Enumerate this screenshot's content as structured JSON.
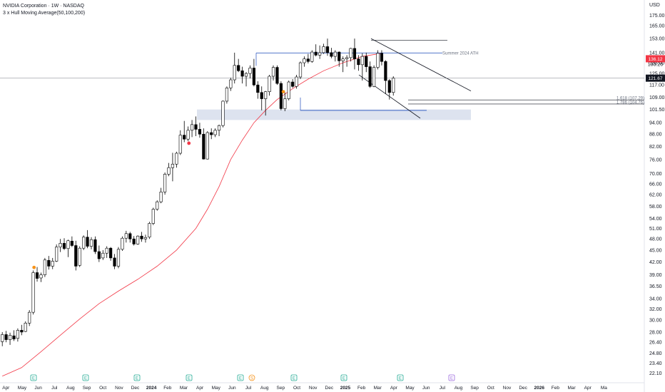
{
  "header": {
    "title": "NVIDIA Corporation · 1W · NASDAQ",
    "indicator": "3 x Hull Moving Average(50,100,200)",
    "currency": "USD"
  },
  "chart_data": {
    "type": "candlestick",
    "title": "NVIDIA Corporation · 1W · NASDAQ",
    "y_scale": "log",
    "ylim": [
      21.5,
      182
    ],
    "y_ticks": [
      "175.00",
      "165.00",
      "153.00",
      "141.00",
      "133.00",
      "125.00",
      "117.00",
      "109.00",
      "101.50",
      "94.00",
      "88.00",
      "82.00",
      "76.00",
      "70.00",
      "66.00",
      "62.00",
      "58.00",
      "54.00",
      "51.00",
      "48.00",
      "45.00",
      "42.00",
      "39.00",
      "36.50",
      "34.00",
      "32.00",
      "30.00",
      "28.00",
      "26.40",
      "24.80",
      "23.40",
      "22.10"
    ],
    "x_ticks": [
      {
        "label": "Apr",
        "date": "2023-04"
      },
      {
        "label": "May",
        "date": "2023-05"
      },
      {
        "label": "Jun",
        "date": "2023-06"
      },
      {
        "label": "Jul",
        "date": "2023-07"
      },
      {
        "label": "Aug",
        "date": "2023-08"
      },
      {
        "label": "Sep",
        "date": "2023-09"
      },
      {
        "label": "Oct",
        "date": "2023-10"
      },
      {
        "label": "Nov",
        "date": "2023-11"
      },
      {
        "label": "Dec",
        "date": "2023-12"
      },
      {
        "label": "2024",
        "date": "2024-01",
        "bold": true
      },
      {
        "label": "Feb",
        "date": "2024-02"
      },
      {
        "label": "Mar",
        "date": "2024-03"
      },
      {
        "label": "Apr",
        "date": "2024-04"
      },
      {
        "label": "May",
        "date": "2024-05"
      },
      {
        "label": "Jun",
        "date": "2024-06"
      },
      {
        "label": "Jul",
        "date": "2024-07"
      },
      {
        "label": "Aug",
        "date": "2024-08"
      },
      {
        "label": "Sep",
        "date": "2024-09"
      },
      {
        "label": "Oct",
        "date": "2024-10"
      },
      {
        "label": "Nov",
        "date": "2024-11"
      },
      {
        "label": "Dec",
        "date": "2024-12"
      },
      {
        "label": "2025",
        "date": "2025-01",
        "bold": true
      },
      {
        "label": "Feb",
        "date": "2025-02"
      },
      {
        "label": "Mar",
        "date": "2025-03"
      },
      {
        "label": "Apr",
        "date": "2025-04"
      },
      {
        "label": "May",
        "date": "2025-05"
      },
      {
        "label": "Jun",
        "date": "2025-06"
      },
      {
        "label": "Jul",
        "date": "2025-07"
      },
      {
        "label": "Aug",
        "date": "2025-08"
      },
      {
        "label": "Sep",
        "date": "2025-09"
      },
      {
        "label": "Oct",
        "date": "2025-10"
      },
      {
        "label": "Nov",
        "date": "2025-11"
      },
      {
        "label": "Dec",
        "date": "2025-12"
      },
      {
        "label": "2026",
        "date": "2026-01",
        "bold": true
      },
      {
        "label": "Feb",
        "date": "2026-02"
      },
      {
        "label": "Mar",
        "date": "2026-03"
      },
      {
        "label": "Apr",
        "date": "2026-04"
      },
      {
        "label": "Ma",
        "date": "2026-05"
      }
    ],
    "candles": [
      {
        "o": 26.5,
        "h": 28.0,
        "l": 25.8,
        "c": 27.6
      },
      {
        "o": 27.6,
        "h": 28.2,
        "l": 26.4,
        "c": 26.8
      },
      {
        "o": 26.8,
        "h": 27.9,
        "l": 26.0,
        "c": 27.5
      },
      {
        "o": 27.4,
        "h": 28.3,
        "l": 26.6,
        "c": 26.9
      },
      {
        "o": 27.0,
        "h": 28.6,
        "l": 26.5,
        "c": 28.3
      },
      {
        "o": 28.3,
        "h": 29.2,
        "l": 27.5,
        "c": 28.0
      },
      {
        "o": 28.1,
        "h": 29.8,
        "l": 28.0,
        "c": 29.5
      },
      {
        "o": 29.5,
        "h": 31.8,
        "l": 29.0,
        "c": 31.4
      },
      {
        "o": 31.4,
        "h": 40.0,
        "l": 31.0,
        "c": 39.5
      },
      {
        "o": 39.5,
        "h": 40.8,
        "l": 37.5,
        "c": 38.2
      },
      {
        "o": 38.3,
        "h": 39.5,
        "l": 37.4,
        "c": 39.0
      },
      {
        "o": 39.0,
        "h": 43.0,
        "l": 38.5,
        "c": 42.5
      },
      {
        "o": 42.4,
        "h": 43.5,
        "l": 40.2,
        "c": 41.0
      },
      {
        "o": 41.0,
        "h": 43.0,
        "l": 40.3,
        "c": 42.2
      },
      {
        "o": 42.2,
        "h": 46.5,
        "l": 42.0,
        "c": 45.8
      },
      {
        "o": 45.8,
        "h": 48.0,
        "l": 44.5,
        "c": 46.8
      },
      {
        "o": 46.8,
        "h": 48.2,
        "l": 45.0,
        "c": 45.4
      },
      {
        "o": 45.4,
        "h": 47.8,
        "l": 43.2,
        "c": 47.5
      },
      {
        "o": 47.4,
        "h": 48.7,
        "l": 45.8,
        "c": 46.2
      },
      {
        "o": 46.2,
        "h": 47.5,
        "l": 40.0,
        "c": 41.0
      },
      {
        "o": 41.2,
        "h": 46.0,
        "l": 40.8,
        "c": 45.5
      },
      {
        "o": 45.5,
        "h": 49.0,
        "l": 45.0,
        "c": 48.5
      },
      {
        "o": 48.5,
        "h": 50.5,
        "l": 45.5,
        "c": 46.0
      },
      {
        "o": 46.0,
        "h": 48.5,
        "l": 45.2,
        "c": 47.8
      },
      {
        "o": 47.8,
        "h": 48.7,
        "l": 44.0,
        "c": 44.6
      },
      {
        "o": 44.6,
        "h": 46.2,
        "l": 42.0,
        "c": 42.8
      },
      {
        "o": 43.0,
        "h": 45.0,
        "l": 42.5,
        "c": 44.2
      },
      {
        "o": 44.2,
        "h": 46.0,
        "l": 43.0,
        "c": 45.5
      },
      {
        "o": 45.5,
        "h": 45.8,
        "l": 42.3,
        "c": 43.0
      },
      {
        "o": 43.0,
        "h": 44.0,
        "l": 40.3,
        "c": 41.0
      },
      {
        "o": 41.0,
        "h": 45.8,
        "l": 40.5,
        "c": 45.2
      },
      {
        "o": 45.2,
        "h": 48.7,
        "l": 44.8,
        "c": 48.2
      },
      {
        "o": 48.2,
        "h": 50.3,
        "l": 47.0,
        "c": 49.5
      },
      {
        "o": 49.5,
        "h": 50.0,
        "l": 47.0,
        "c": 48.0
      },
      {
        "o": 48.0,
        "h": 48.8,
        "l": 46.2,
        "c": 46.6
      },
      {
        "o": 46.6,
        "h": 49.0,
        "l": 46.4,
        "c": 48.8
      },
      {
        "o": 48.8,
        "h": 50.0,
        "l": 47.2,
        "c": 48.0
      },
      {
        "o": 48.0,
        "h": 49.2,
        "l": 47.0,
        "c": 48.4
      },
      {
        "o": 48.5,
        "h": 53.0,
        "l": 48.0,
        "c": 52.5
      },
      {
        "o": 52.5,
        "h": 57.5,
        "l": 52.0,
        "c": 57.0
      },
      {
        "o": 57.0,
        "h": 60.0,
        "l": 56.5,
        "c": 59.5
      },
      {
        "o": 59.5,
        "h": 64.5,
        "l": 59.0,
        "c": 63.0
      },
      {
        "o": 63.0,
        "h": 70.5,
        "l": 62.0,
        "c": 69.8
      },
      {
        "o": 69.8,
        "h": 74.5,
        "l": 69.0,
        "c": 72.5
      },
      {
        "o": 72.5,
        "h": 79.0,
        "l": 67.0,
        "c": 74.0
      },
      {
        "o": 74.0,
        "h": 79.5,
        "l": 72.5,
        "c": 78.8
      },
      {
        "o": 78.8,
        "h": 90.0,
        "l": 78.0,
        "c": 87.5
      },
      {
        "o": 87.5,
        "h": 95.0,
        "l": 84.0,
        "c": 85.5
      },
      {
        "o": 85.5,
        "h": 92.0,
        "l": 84.5,
        "c": 90.0
      },
      {
        "o": 90.0,
        "h": 95.5,
        "l": 86.5,
        "c": 93.0
      },
      {
        "o": 93.0,
        "h": 97.5,
        "l": 87.0,
        "c": 90.5
      },
      {
        "o": 90.5,
        "h": 94.0,
        "l": 86.2,
        "c": 88.0
      },
      {
        "o": 88.0,
        "h": 91.0,
        "l": 76.0,
        "c": 76.2
      },
      {
        "o": 76.2,
        "h": 89.5,
        "l": 76.0,
        "c": 88.8
      },
      {
        "o": 88.8,
        "h": 91.0,
        "l": 85.5,
        "c": 87.7
      },
      {
        "o": 87.7,
        "h": 91.0,
        "l": 86.5,
        "c": 90.0
      },
      {
        "o": 90.0,
        "h": 93.0,
        "l": 87.0,
        "c": 92.5
      },
      {
        "o": 92.5,
        "h": 107.0,
        "l": 91.5,
        "c": 106.5
      },
      {
        "o": 106.5,
        "h": 116.0,
        "l": 105.0,
        "c": 115.0
      },
      {
        "o": 115.0,
        "h": 122.0,
        "l": 113.0,
        "c": 120.5
      },
      {
        "o": 120.5,
        "h": 141.0,
        "l": 118.0,
        "c": 131.0
      },
      {
        "o": 131.0,
        "h": 136.0,
        "l": 126.0,
        "c": 127.0
      },
      {
        "o": 127.0,
        "h": 130.0,
        "l": 118.0,
        "c": 123.0
      },
      {
        "o": 123.0,
        "h": 126.0,
        "l": 116.0,
        "c": 125.0
      },
      {
        "o": 125.0,
        "h": 131.0,
        "l": 121.5,
        "c": 129.0
      },
      {
        "o": 129.0,
        "h": 136.0,
        "l": 116.0,
        "c": 117.0
      },
      {
        "o": 117.0,
        "h": 119.5,
        "l": 108.0,
        "c": 112.0
      },
      {
        "o": 112.0,
        "h": 116.0,
        "l": 101.0,
        "c": 108.0
      },
      {
        "o": 108.0,
        "h": 113.0,
        "l": 98.0,
        "c": 112.5
      },
      {
        "o": 112.5,
        "h": 124.0,
        "l": 110.0,
        "c": 123.0
      },
      {
        "o": 123.0,
        "h": 131.0,
        "l": 120.0,
        "c": 129.5
      },
      {
        "o": 129.5,
        "h": 131.0,
        "l": 117.0,
        "c": 118.0
      },
      {
        "o": 118.0,
        "h": 119.5,
        "l": 101.0,
        "c": 102.0
      },
      {
        "o": 102.0,
        "h": 112.0,
        "l": 100.5,
        "c": 108.0
      },
      {
        "o": 108.0,
        "h": 120.0,
        "l": 107.0,
        "c": 119.0
      },
      {
        "o": 119.0,
        "h": 121.0,
        "l": 115.0,
        "c": 116.0
      },
      {
        "o": 116.0,
        "h": 124.0,
        "l": 114.5,
        "c": 122.5
      },
      {
        "o": 122.5,
        "h": 134.0,
        "l": 121.0,
        "c": 133.0
      },
      {
        "o": 133.0,
        "h": 138.0,
        "l": 130.0,
        "c": 136.0
      },
      {
        "o": 136.0,
        "h": 140.0,
        "l": 132.5,
        "c": 134.0
      },
      {
        "o": 134.0,
        "h": 143.0,
        "l": 133.0,
        "c": 141.5
      },
      {
        "o": 141.5,
        "h": 148.0,
        "l": 138.0,
        "c": 139.0
      },
      {
        "o": 139.0,
        "h": 147.0,
        "l": 136.0,
        "c": 141.0
      },
      {
        "o": 141.0,
        "h": 148.5,
        "l": 140.0,
        "c": 146.0
      },
      {
        "o": 146.0,
        "h": 153.0,
        "l": 138.5,
        "c": 141.0
      },
      {
        "o": 141.0,
        "h": 145.0,
        "l": 136.5,
        "c": 138.0
      },
      {
        "o": 138.0,
        "h": 143.0,
        "l": 134.0,
        "c": 141.5
      },
      {
        "o": 141.5,
        "h": 142.0,
        "l": 130.0,
        "c": 134.5
      },
      {
        "o": 134.5,
        "h": 138.0,
        "l": 126.0,
        "c": 136.0
      },
      {
        "o": 136.0,
        "h": 139.0,
        "l": 130.0,
        "c": 137.0
      },
      {
        "o": 137.0,
        "h": 145.0,
        "l": 134.0,
        "c": 144.5
      },
      {
        "o": 144.5,
        "h": 153.0,
        "l": 128.0,
        "c": 136.0
      },
      {
        "o": 136.0,
        "h": 139.0,
        "l": 127.0,
        "c": 131.5
      },
      {
        "o": 131.5,
        "h": 140.5,
        "l": 120.0,
        "c": 138.0
      },
      {
        "o": 138.0,
        "h": 141.0,
        "l": 126.0,
        "c": 130.0
      },
      {
        "o": 130.0,
        "h": 134.0,
        "l": 115.0,
        "c": 116.0
      },
      {
        "o": 116.0,
        "h": 131.0,
        "l": 115.5,
        "c": 129.5
      },
      {
        "o": 129.5,
        "h": 143.0,
        "l": 128.0,
        "c": 140.5
      },
      {
        "o": 140.5,
        "h": 143.0,
        "l": 131.0,
        "c": 134.0
      },
      {
        "o": 134.0,
        "h": 135.0,
        "l": 111.0,
        "c": 120.0
      },
      {
        "o": 120.0,
        "h": 121.0,
        "l": 107.5,
        "c": 112.0
      },
      {
        "o": 112.0,
        "h": 123.0,
        "l": 110.0,
        "c": 121.67
      }
    ],
    "hull_ma": [
      [
        0,
        21.7
      ],
      [
        5,
        22.8
      ],
      [
        10,
        25.0
      ],
      [
        15,
        27.5
      ],
      [
        20,
        30.2
      ],
      [
        25,
        33.0
      ],
      [
        30,
        35.5
      ],
      [
        35,
        38.0
      ],
      [
        40,
        41.0
      ],
      [
        45,
        45.0
      ],
      [
        50,
        51.0
      ],
      [
        53,
        57.0
      ],
      [
        56,
        65.0
      ],
      [
        59,
        76.0
      ],
      [
        62,
        85.0
      ],
      [
        65,
        94.0
      ],
      [
        68,
        101.0
      ],
      [
        71,
        107.5
      ],
      [
        75,
        114.5
      ],
      [
        79,
        121.0
      ],
      [
        83,
        127.0
      ],
      [
        88,
        133.0
      ],
      [
        93,
        138.0
      ],
      [
        98,
        140.5
      ]
    ],
    "current_price": "121.67",
    "price_tag": "136.12",
    "price_tag_small": "133.26",
    "horizontal_levels": [
      {
        "name": "summer-2024-ath",
        "price": 140.76,
        "label": "Summer 2024 ATH"
      },
      {
        "name": "fib-1618",
        "price": 107.29,
        "label": "1.618 (107.29)"
      },
      {
        "name": "fib-1786",
        "price": 104.76,
        "label": "1.786 (104.76)"
      },
      {
        "name": "blue-support",
        "price": 101.0,
        "label": ""
      }
    ],
    "support_zone": [
      95.5,
      101.5
    ],
    "colors": {
      "up": "#ffffff",
      "down": "#000000",
      "hull": "#f23645",
      "level": "#3b63c4",
      "zone": "#d1d9ea",
      "price_tag": "#f23645",
      "current_tag": "#131722",
      "marker_red": "#f23645",
      "marker_orange": "#f7931a",
      "earnings": "#22ab94",
      "dividend": "#f7931a",
      "event_purple": "#9c6ade"
    }
  },
  "event_markers": [
    {
      "type": "earnings",
      "label": "E"
    },
    {
      "type": "earnings",
      "label": "E"
    },
    {
      "type": "earnings",
      "label": "E"
    },
    {
      "type": "earnings",
      "label": "E"
    },
    {
      "type": "earnings",
      "label": "E"
    },
    {
      "type": "split",
      "label": "S"
    },
    {
      "type": "earnings",
      "label": "E"
    },
    {
      "type": "earnings",
      "label": "E"
    },
    {
      "type": "earnings",
      "label": "E"
    },
    {
      "type": "earnings-upcoming",
      "label": "E"
    }
  ]
}
